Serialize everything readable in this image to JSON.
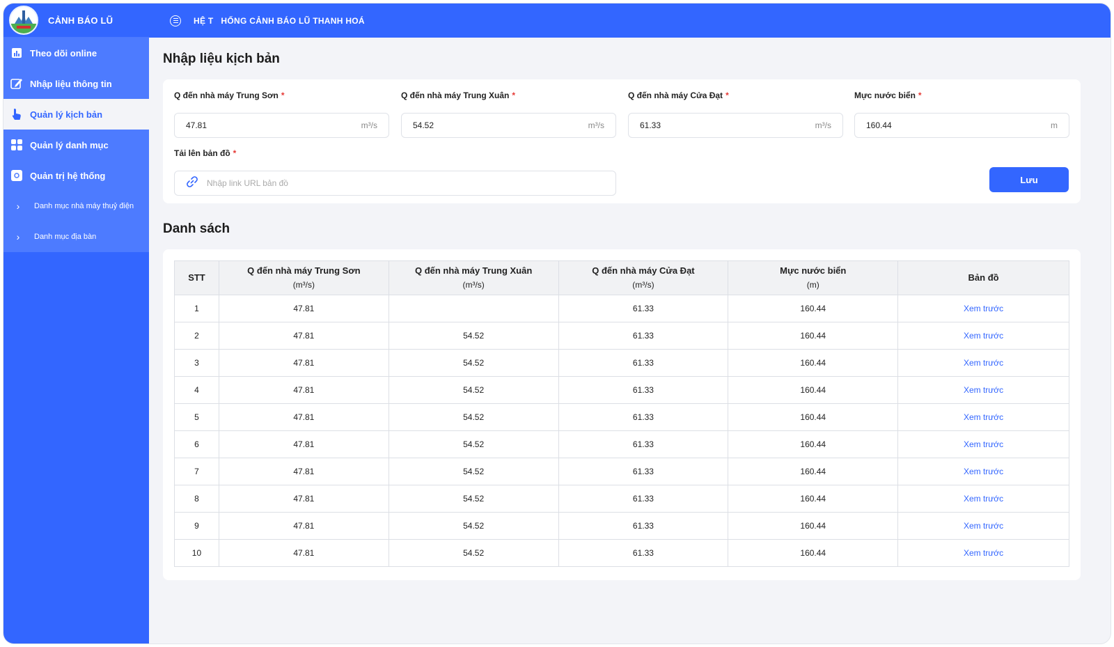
{
  "app": {
    "brand_title": "CẢNH BÁO LŨ",
    "logo_text": "THANH HOÁ",
    "system_title": "HỆ T   HỐNG CẢNH BÁO LŨ THANH HOÁ"
  },
  "sidebar": {
    "items": [
      {
        "label": "Theo dõi online",
        "icon": "chart-icon"
      },
      {
        "label": "Nhập liệu thông tin",
        "icon": "edit-icon"
      },
      {
        "label": "Quản lý kịch bản",
        "icon": "touch-icon"
      },
      {
        "label": "Quản lý danh mục",
        "icon": "grid-icon"
      },
      {
        "label": "Quản trị hệ thống",
        "icon": "settings-icon"
      },
      {
        "label": "Danh mục nhà máy thuỷ điện",
        "icon": "chevron-right-icon"
      },
      {
        "label": "Danh mục địa bàn",
        "icon": "chevron-right-icon"
      }
    ],
    "active_index": 2
  },
  "form": {
    "title": "Nhập liệu kịch bản",
    "fields": [
      {
        "label": "Q đến nhà máy Trung Sơn",
        "value": "47.81",
        "unit": "m³/s"
      },
      {
        "label": "Q đến nhà máy Trung Xuân",
        "value": "54.52",
        "unit": "m³/s"
      },
      {
        "label": "Q đến nhà máy Cửa Đạt",
        "value": "61.33",
        "unit": "m³/s"
      },
      {
        "label": "Mực nước biển",
        "value": "160.44",
        "unit": "m"
      }
    ],
    "required_mark": "*",
    "upload_label": "Tải lên bản đồ",
    "upload_placeholder": "Nhập link URL bản đồ",
    "save_label": "Lưu"
  },
  "list": {
    "title": "Danh sách",
    "columns": [
      {
        "label": "STT",
        "unit": ""
      },
      {
        "label": "Q đến nhà máy Trung Sơn",
        "unit": "(m³/s)"
      },
      {
        "label": "Q đến nhà máy Trung Xuân",
        "unit": "(m³/s)"
      },
      {
        "label": "Q đến nhà máy Cửa Đạt",
        "unit": "(m³/s)"
      },
      {
        "label": "Mực nước biển",
        "unit": "(m)"
      },
      {
        "label": "Bản đồ",
        "unit": ""
      }
    ],
    "rows": [
      [
        "1",
        "47.81",
        "",
        "61.33",
        "160.44",
        "Xem trước"
      ],
      [
        "2",
        "47.81",
        "54.52",
        "61.33",
        "160.44",
        "Xem trước"
      ],
      [
        "3",
        "47.81",
        "54.52",
        "61.33",
        "160.44",
        "Xem trước"
      ],
      [
        "4",
        "47.81",
        "54.52",
        "61.33",
        "160.44",
        "Xem trước"
      ],
      [
        "5",
        "47.81",
        "54.52",
        "61.33",
        "160.44",
        "Xem trước"
      ],
      [
        "6",
        "47.81",
        "54.52",
        "61.33",
        "160.44",
        "Xem trước"
      ],
      [
        "7",
        "47.81",
        "54.52",
        "61.33",
        "160.44",
        "Xem trước"
      ],
      [
        "8",
        "47.81",
        "54.52",
        "61.33",
        "160.44",
        "Xem trước"
      ],
      [
        "9",
        "47.81",
        "54.52",
        "61.33",
        "160.44",
        "Xem trước"
      ],
      [
        "10",
        "47.81",
        "54.52",
        "61.33",
        "160.44",
        "Xem trước"
      ]
    ]
  },
  "colors": {
    "primary": "#3366ff",
    "required": "#e53935",
    "background": "#f3f4f8"
  }
}
